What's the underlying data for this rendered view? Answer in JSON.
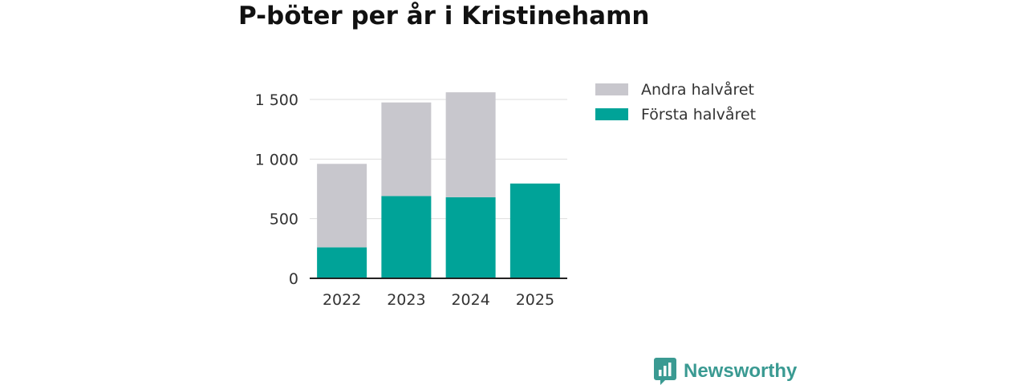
{
  "title": "P-böter per år i Kristinehamn",
  "brand": {
    "name": "Newsworthy",
    "icon": "newsworthy-logo-icon"
  },
  "colors": {
    "first_half": "#00a398",
    "second_half": "#c8c7cd",
    "brand": "#3a9a92"
  },
  "chart_data": {
    "type": "bar",
    "stacked": true,
    "title": "P-böter per år i Kristinehamn",
    "xlabel": "",
    "ylabel": "",
    "categories": [
      "2022",
      "2023",
      "2024",
      "2025"
    ],
    "series": [
      {
        "name": "Första halvåret",
        "values": [
          260,
          690,
          680,
          795
        ],
        "color": "#00a398"
      },
      {
        "name": "Andra halvåret",
        "values": [
          700,
          785,
          880,
          0
        ],
        "color": "#c8c7cd"
      }
    ],
    "ylim": [
      0,
      1500
    ],
    "yticks": [
      0,
      500,
      1000,
      1500
    ],
    "ytick_labels": [
      "0",
      "500",
      "1 000",
      "1 500"
    ],
    "grid": true,
    "legend": {
      "position": "top-right",
      "entries": [
        {
          "label": "Andra halvåret",
          "color": "#c8c7cd"
        },
        {
          "label": "Första halvåret",
          "color": "#00a398"
        }
      ]
    }
  }
}
